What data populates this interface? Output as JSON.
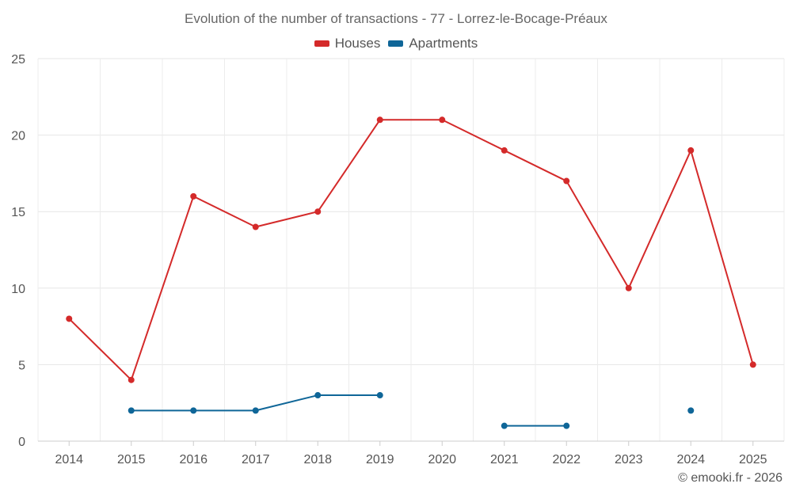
{
  "chart_data": {
    "type": "line",
    "title": "Evolution of the number of transactions - 77 - Lorrez-le-Bocage-Préaux",
    "categories": [
      "2014",
      "2015",
      "2016",
      "2017",
      "2018",
      "2019",
      "2020",
      "2021",
      "2022",
      "2023",
      "2024",
      "2025"
    ],
    "ylim": [
      0,
      25
    ],
    "yticks": [
      0,
      5,
      10,
      15,
      20,
      25
    ],
    "grid": true,
    "legend_position": "top-center",
    "series": [
      {
        "name": "Houses",
        "color": "#d42a2a",
        "values": [
          8,
          4,
          16,
          14,
          15,
          21,
          21,
          19,
          17,
          10,
          19,
          5
        ]
      },
      {
        "name": "Apartments",
        "color": "#0f6698",
        "values": [
          null,
          2,
          2,
          2,
          3,
          3,
          null,
          1,
          1,
          null,
          2,
          null
        ]
      }
    ]
  },
  "credit": "© emooki.fr - 2026"
}
